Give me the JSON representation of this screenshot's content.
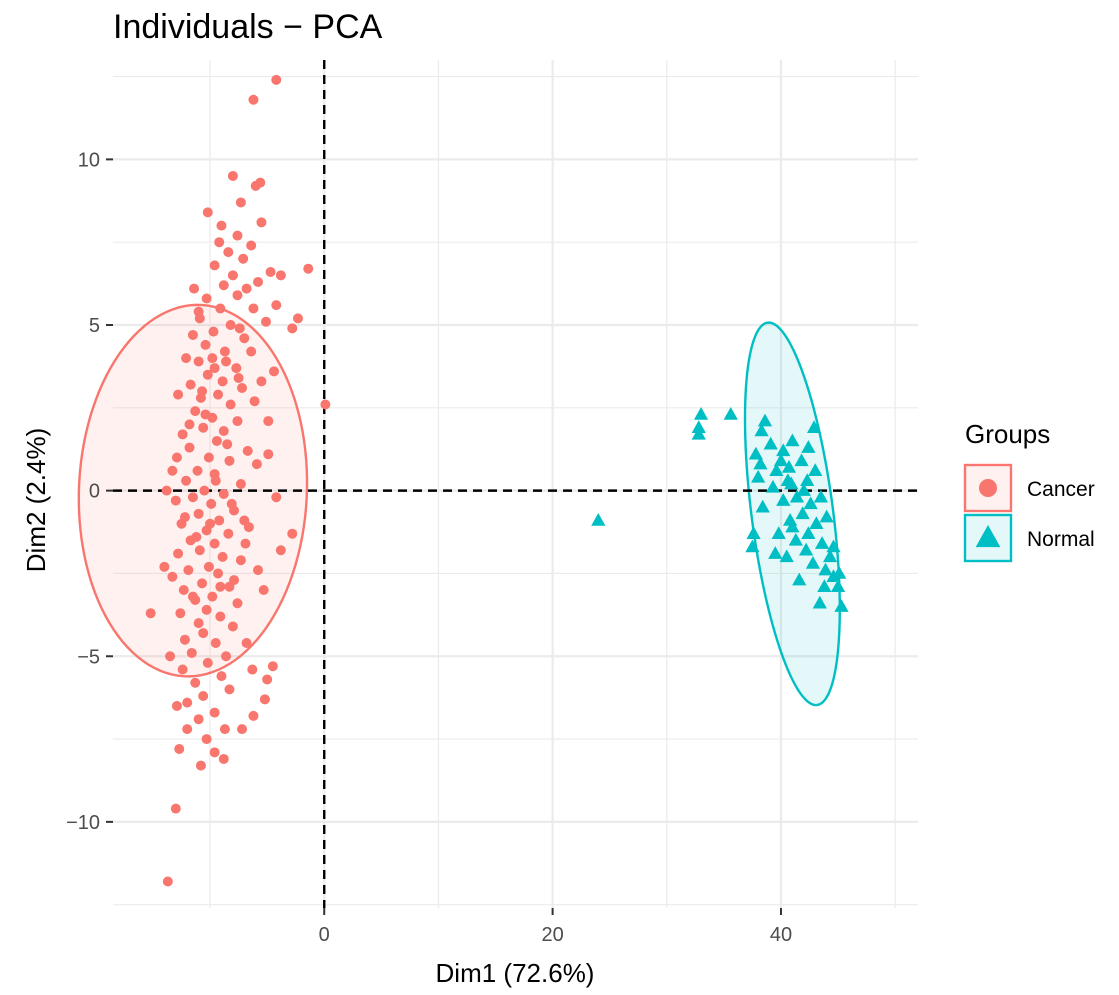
{
  "chart_data": {
    "type": "scatter",
    "title": "Individuals − PCA",
    "xlabel": "Dim1 (72.6%)",
    "ylabel": "Dim2 (2.4%)",
    "xlim": [
      -18.5,
      52
    ],
    "ylim": [
      -12.6,
      13
    ],
    "x_ticks": [
      0,
      20,
      40
    ],
    "x_tick_labels": [
      "0",
      "20",
      "40"
    ],
    "y_ticks": [
      -10,
      -5,
      0,
      5,
      10
    ],
    "y_tick_labels": [
      "−10",
      "−5",
      "0",
      "5",
      "10"
    ],
    "grid": true,
    "reference_lines": {
      "x": 0,
      "y": 0,
      "style": "dashed"
    },
    "legend": {
      "title": "Groups",
      "position": "right",
      "entries": [
        {
          "label": "Cancer",
          "shape": "circle",
          "color": "#F8766D"
        },
        {
          "label": "Normal",
          "shape": "triangle",
          "color": "#00BFC4"
        }
      ]
    },
    "series": [
      {
        "name": "Cancer",
        "shape": "circle",
        "color": "#F8766D",
        "ellipse": {
          "cx": -11.5,
          "cy": 0.0,
          "rx": 5.6,
          "ry": 10.0,
          "angle_deg": 92
        },
        "points": [
          [
            -4.2,
            12.4
          ],
          [
            -6.2,
            11.8
          ],
          [
            -5.6,
            9.3
          ],
          [
            -8.0,
            9.5
          ],
          [
            -10.2,
            8.4
          ],
          [
            -7.3,
            8.7
          ],
          [
            -5.5,
            8.1
          ],
          [
            -9.0,
            8.0
          ],
          [
            -7.6,
            7.7
          ],
          [
            -8.4,
            7.2
          ],
          [
            -9.2,
            7.5
          ],
          [
            -6.4,
            7.4
          ],
          [
            -7.1,
            7.0
          ],
          [
            -9.6,
            6.8
          ],
          [
            -8.0,
            6.5
          ],
          [
            -4.7,
            6.6
          ],
          [
            -3.8,
            6.5
          ],
          [
            -5.8,
            6.3
          ],
          [
            -6.8,
            6.1
          ],
          [
            -8.8,
            6.2
          ],
          [
            -7.6,
            5.9
          ],
          [
            -10.3,
            5.8
          ],
          [
            -9.1,
            5.5
          ],
          [
            -11.0,
            5.4
          ],
          [
            -6.2,
            5.5
          ],
          [
            -5.1,
            5.1
          ],
          [
            -2.3,
            5.2
          ],
          [
            -2.8,
            4.9
          ],
          [
            -8.2,
            5.0
          ],
          [
            -9.7,
            4.8
          ],
          [
            -11.5,
            4.7
          ],
          [
            -7.0,
            4.6
          ],
          [
            -10.4,
            4.4
          ],
          [
            -8.7,
            4.2
          ],
          [
            -6.4,
            4.2
          ],
          [
            -12.1,
            4.0
          ],
          [
            -11.0,
            3.9
          ],
          [
            -9.6,
            3.7
          ],
          [
            -7.7,
            3.7
          ],
          [
            -10.2,
            3.5
          ],
          [
            -8.9,
            3.3
          ],
          [
            -11.7,
            3.2
          ],
          [
            -5.5,
            3.3
          ],
          [
            -7.2,
            3.1
          ],
          [
            -9.3,
            2.9
          ],
          [
            -10.8,
            2.8
          ],
          [
            -12.8,
            2.9
          ],
          [
            -8.2,
            2.6
          ],
          [
            -11.3,
            2.4
          ],
          [
            -9.8,
            2.2
          ],
          [
            -7.6,
            2.1
          ],
          [
            -10.6,
            1.9
          ],
          [
            -8.8,
            1.8
          ],
          [
            -12.4,
            1.7
          ],
          [
            -9.4,
            1.5
          ],
          [
            -11.8,
            1.3
          ],
          [
            -6.7,
            1.2
          ],
          [
            -10.1,
            1.0
          ],
          [
            -8.3,
            0.9
          ],
          [
            -13.3,
            0.6
          ],
          [
            -11.1,
            0.6
          ],
          [
            -9.6,
            0.5
          ],
          [
            -12.1,
            0.3
          ],
          [
            -7.3,
            0.2
          ],
          [
            -10.5,
            0.0
          ],
          [
            -8.8,
            -0.1
          ],
          [
            -11.5,
            -0.2
          ],
          [
            -13.0,
            -0.3
          ],
          [
            -9.9,
            -0.4
          ],
          [
            -4.2,
            -0.2
          ],
          [
            -7.9,
            -0.6
          ],
          [
            -11.0,
            -0.7
          ],
          [
            -9.2,
            -0.9
          ],
          [
            -12.5,
            -1.0
          ],
          [
            -10.3,
            -1.2
          ],
          [
            -8.4,
            -1.3
          ],
          [
            -6.6,
            -1.1
          ],
          [
            -11.7,
            -1.5
          ],
          [
            -9.6,
            -1.6
          ],
          [
            -10.9,
            -1.8
          ],
          [
            -12.8,
            -1.9
          ],
          [
            -8.9,
            -2.0
          ],
          [
            -7.3,
            -2.1
          ],
          [
            -10.1,
            -2.3
          ],
          [
            -11.9,
            -2.4
          ],
          [
            -9.3,
            -2.5
          ],
          [
            -13.3,
            -2.6
          ],
          [
            -10.7,
            -2.8
          ],
          [
            -8.3,
            -2.9
          ],
          [
            -12.3,
            -3.0
          ],
          [
            -9.8,
            -3.2
          ],
          [
            -11.3,
            -3.3
          ],
          [
            -7.6,
            -3.4
          ],
          [
            -10.3,
            -3.6
          ],
          [
            -12.6,
            -3.7
          ],
          [
            -9.1,
            -3.8
          ],
          [
            -11.0,
            -4.0
          ],
          [
            -8.0,
            -4.1
          ],
          [
            -10.6,
            -4.3
          ],
          [
            -12.2,
            -4.5
          ],
          [
            -9.5,
            -4.6
          ],
          [
            -11.6,
            -4.9
          ],
          [
            -8.6,
            -5.0
          ],
          [
            -10.2,
            -5.2
          ],
          [
            -12.4,
            -5.4
          ],
          [
            -9.0,
            -5.6
          ],
          [
            -11.3,
            -5.8
          ],
          [
            -8.3,
            -6.0
          ],
          [
            -10.6,
            -6.2
          ],
          [
            -12.0,
            -6.4
          ],
          [
            -9.6,
            -6.7
          ],
          [
            -11.0,
            -6.9
          ],
          [
            -8.7,
            -7.2
          ],
          [
            -10.3,
            -7.5
          ],
          [
            -9.6,
            -7.9
          ],
          [
            -8.8,
            -8.1
          ],
          [
            -6.0,
            9.2
          ],
          [
            -4.2,
            5.6
          ],
          [
            -3.8,
            -1.8
          ],
          [
            -1.4,
            6.7
          ],
          [
            0.1,
            2.6
          ],
          [
            -2.8,
            -1.3
          ],
          [
            -15.2,
            -3.7
          ],
          [
            -13.0,
            -9.6
          ],
          [
            -13.7,
            -11.8
          ],
          [
            -5.2,
            -6.3
          ],
          [
            -4.5,
            -5.3
          ],
          [
            -7.2,
            -7.2
          ],
          [
            -6.2,
            -6.8
          ],
          [
            -11.8,
            2.0
          ],
          [
            -10.7,
            3.0
          ],
          [
            -9.5,
            0.3
          ],
          [
            -8.1,
            -0.4
          ],
          [
            -12.2,
            -0.8
          ],
          [
            -10.0,
            -1.0
          ],
          [
            -9.1,
            -2.9
          ],
          [
            -11.5,
            -3.2
          ],
          [
            -10.4,
            2.3
          ],
          [
            -7.5,
            3.4
          ],
          [
            -12.9,
            1.0
          ],
          [
            -11.2,
            -1.4
          ],
          [
            -8.5,
            1.4
          ],
          [
            -7.0,
            -0.9
          ],
          [
            -6.1,
            2.7
          ],
          [
            -5.8,
            -2.4
          ],
          [
            -4.9,
            1.1
          ],
          [
            -5.3,
            -3.0
          ],
          [
            -6.8,
            -4.6
          ],
          [
            -7.4,
            4.9
          ],
          [
            -8.6,
            3.9
          ],
          [
            -5.9,
            0.8
          ],
          [
            -13.8,
            0.0
          ],
          [
            -14.0,
            -2.3
          ],
          [
            -13.5,
            -5.0
          ],
          [
            -12.9,
            -6.5
          ],
          [
            -5.0,
            -5.7
          ],
          [
            -6.3,
            -5.4
          ],
          [
            -4.4,
            3.6
          ],
          [
            -4.9,
            2.1
          ],
          [
            -6.9,
            -1.6
          ],
          [
            -7.9,
            -2.7
          ],
          [
            -9.8,
            4.0
          ],
          [
            -10.9,
            5.2
          ],
          [
            -11.4,
            6.1
          ],
          [
            -12.0,
            -7.2
          ],
          [
            -12.7,
            -7.8
          ],
          [
            -10.8,
            -8.3
          ]
        ]
      },
      {
        "name": "Normal",
        "shape": "triangle",
        "color": "#00BFC4",
        "ellipse": {
          "cx": 41.0,
          "cy": -0.7,
          "rx": 6.3,
          "ry": 3.3,
          "angle_deg": -62
        },
        "points": [
          [
            24.0,
            -0.9
          ],
          [
            33.0,
            2.3
          ],
          [
            32.8,
            1.9
          ],
          [
            32.8,
            1.7
          ],
          [
            35.6,
            2.3
          ],
          [
            38.6,
            2.1
          ],
          [
            38.3,
            1.8
          ],
          [
            37.8,
            1.1
          ],
          [
            39.1,
            1.4
          ],
          [
            40.2,
            1.2
          ],
          [
            41.0,
            1.5
          ],
          [
            42.4,
            1.3
          ],
          [
            42.9,
            1.9
          ],
          [
            41.8,
            0.9
          ],
          [
            40.7,
            0.7
          ],
          [
            39.6,
            0.6
          ],
          [
            38.2,
            0.8
          ],
          [
            40.9,
            0.2
          ],
          [
            42.3,
            0.3
          ],
          [
            43.0,
            0.6
          ],
          [
            41.4,
            -0.2
          ],
          [
            40.2,
            -0.3
          ],
          [
            39.3,
            0.1
          ],
          [
            42.6,
            -0.4
          ],
          [
            43.5,
            -0.2
          ],
          [
            41.9,
            -0.7
          ],
          [
            40.8,
            -0.9
          ],
          [
            43.1,
            -1.0
          ],
          [
            44.0,
            -0.8
          ],
          [
            42.4,
            -1.3
          ],
          [
            41.3,
            -1.5
          ],
          [
            43.6,
            -1.6
          ],
          [
            39.8,
            -1.3
          ],
          [
            37.6,
            -1.3
          ],
          [
            37.5,
            -1.7
          ],
          [
            44.3,
            -2.0
          ],
          [
            43.9,
            -2.4
          ],
          [
            42.8,
            -2.2
          ],
          [
            44.6,
            -2.6
          ],
          [
            45.1,
            -2.5
          ],
          [
            45.0,
            -2.9
          ],
          [
            43.4,
            -3.4
          ],
          [
            45.3,
            -3.5
          ],
          [
            41.6,
            -2.7
          ],
          [
            40.5,
            -2.0
          ],
          [
            38.4,
            -0.5
          ],
          [
            38.0,
            0.4
          ],
          [
            44.6,
            -1.7
          ],
          [
            42.0,
            0.0
          ],
          [
            40.0,
            0.9
          ],
          [
            39.5,
            -1.9
          ],
          [
            41.0,
            -1.1
          ],
          [
            43.8,
            -2.9
          ],
          [
            42.2,
            -1.8
          ],
          [
            40.6,
            0.3
          ]
        ]
      }
    ]
  }
}
